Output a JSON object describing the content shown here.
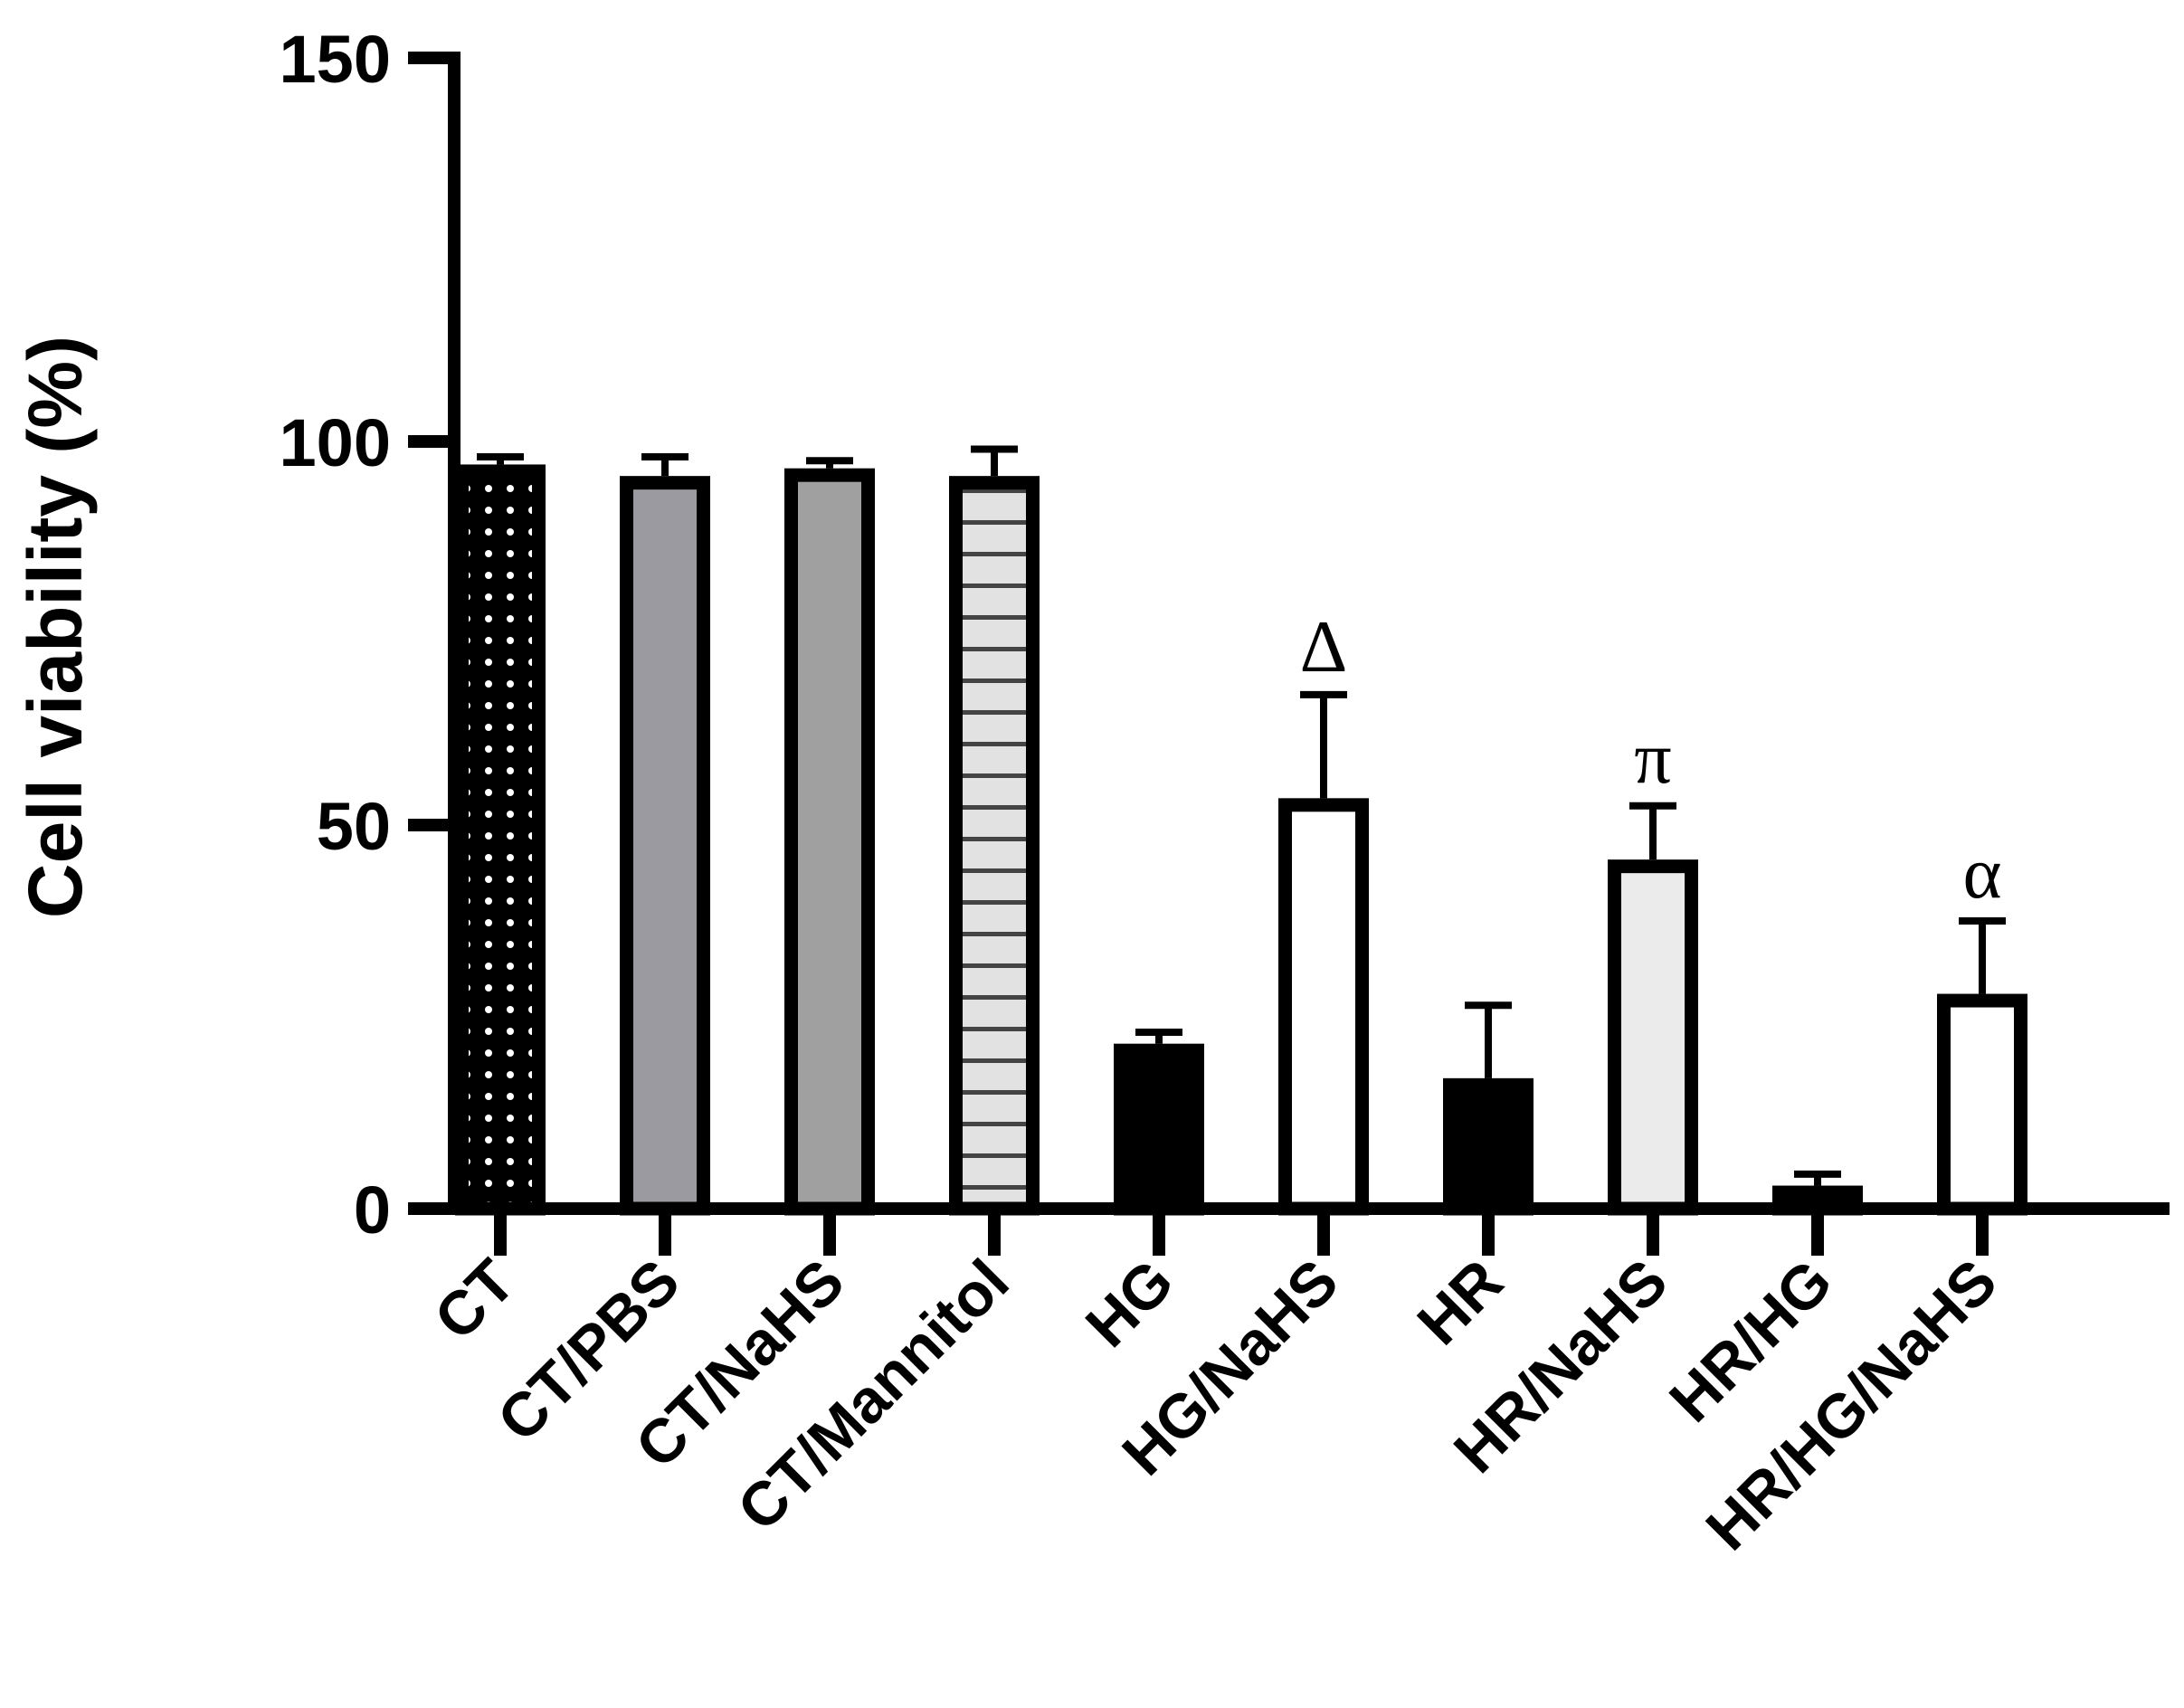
{
  "chart_data": {
    "type": "bar",
    "ylabel": "Cell viability (%)",
    "xlabel": "",
    "ylim": [
      0,
      150
    ],
    "yticks": [
      "0",
      "50",
      "100",
      "150"
    ],
    "grid": false,
    "legend": "none",
    "categories": [
      "CT",
      "CT/PBS",
      "CT/NaHS",
      "CT/Mannitol",
      "HG",
      "HG/NaHS",
      "HR",
      "HR/NaHS",
      "HR/HG",
      "HR/HG/NaHS"
    ],
    "values": [
      97,
      95.5,
      96.5,
      95.5,
      21.5,
      53.5,
      17,
      45.5,
      3,
      28
    ],
    "errors": [
      1,
      2.5,
      1,
      3.5,
      1.5,
      13.5,
      9.5,
      7,
      1.5,
      9.5
    ],
    "fills": [
      "dots-black",
      "#9a9aa0",
      "#a0a0a0",
      "hlines-light",
      "#000000",
      "#ffffff",
      "#000000",
      "#ebebeb",
      "#000000",
      "#ffffff"
    ],
    "annotations": [
      "",
      "",
      "",
      "",
      "",
      "Δ",
      "",
      "π",
      "",
      "α"
    ]
  }
}
